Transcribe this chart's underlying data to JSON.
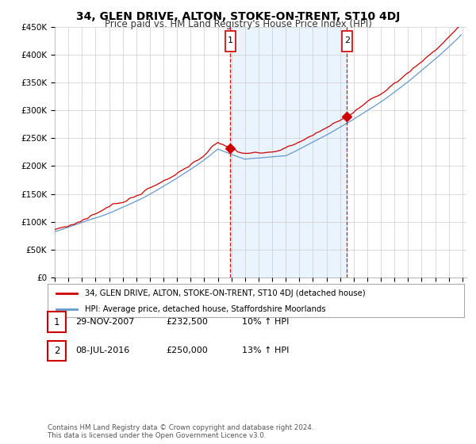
{
  "title": "34, GLEN DRIVE, ALTON, STOKE-ON-TRENT, ST10 4DJ",
  "subtitle": "Price paid vs. HM Land Registry's House Price Index (HPI)",
  "ylim": [
    0,
    450000
  ],
  "yticks": [
    0,
    50000,
    100000,
    150000,
    200000,
    250000,
    300000,
    350000,
    400000,
    450000
  ],
  "legend_line1": "34, GLEN DRIVE, ALTON, STOKE-ON-TRENT, ST10 4DJ (detached house)",
  "legend_line2": "HPI: Average price, detached house, Staffordshire Moorlands",
  "transaction1_label": "1",
  "transaction1_date": "29-NOV-2007",
  "transaction1_price": "£232,500",
  "transaction1_hpi": "10% ↑ HPI",
  "transaction2_label": "2",
  "transaction2_date": "08-JUL-2016",
  "transaction2_price": "£250,000",
  "transaction2_hpi": "13% ↑ HPI",
  "footer": "Contains HM Land Registry data © Crown copyright and database right 2024.\nThis data is licensed under the Open Government Licence v3.0.",
  "line_color_red": "#cc0000",
  "line_color_blue": "#6699cc",
  "shade_color": "#ddeeff",
  "vline_color": "#cc0000",
  "background_color": "#ffffff",
  "grid_color": "#cccccc",
  "transaction1_x": 2007.92,
  "transaction2_x": 2016.5
}
